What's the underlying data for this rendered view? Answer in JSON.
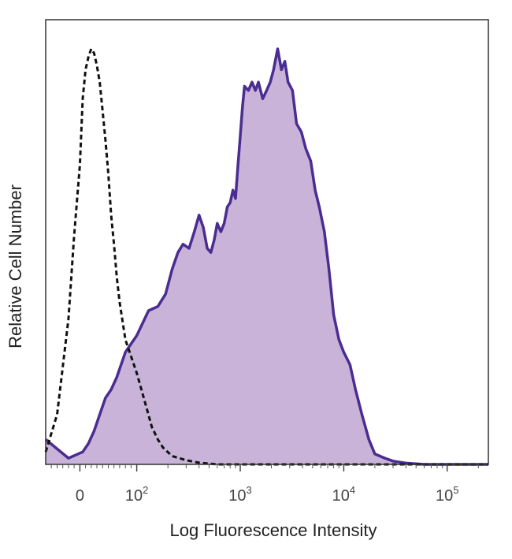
{
  "chart_data": {
    "type": "area",
    "xlabel": "Log Fluorescence Intensity",
    "ylabel": "Relative Cell Number",
    "x_scale": "biexponential",
    "xlim": [
      -60,
      250000
    ],
    "ylim": [
      0,
      100
    ],
    "grid": false,
    "legend": "none",
    "x_ticks": [
      {
        "value": 0,
        "base": "0",
        "exp": ""
      },
      {
        "value": 100,
        "base": "10",
        "exp": "2"
      },
      {
        "value": 1000,
        "base": "10",
        "exp": "3"
      },
      {
        "value": 10000,
        "base": "10",
        "exp": "4"
      },
      {
        "value": 100000,
        "base": "10",
        "exp": "5"
      }
    ],
    "series": [
      {
        "style": "filled-solid",
        "color": "#4a2d91",
        "fill": "#c9b3d8",
        "points": [
          [
            -60,
            6
          ],
          [
            -20,
            1.5
          ],
          [
            5,
            3
          ],
          [
            15,
            5
          ],
          [
            25,
            8
          ],
          [
            35,
            12
          ],
          [
            45,
            16
          ],
          [
            55,
            18
          ],
          [
            65,
            21
          ],
          [
            80,
            27
          ],
          [
            100,
            31
          ],
          [
            130,
            37
          ],
          [
            160,
            38
          ],
          [
            190,
            41
          ],
          [
            220,
            47
          ],
          [
            250,
            51
          ],
          [
            280,
            53
          ],
          [
            320,
            52
          ],
          [
            360,
            56
          ],
          [
            400,
            60
          ],
          [
            440,
            57
          ],
          [
            480,
            52
          ],
          [
            520,
            51
          ],
          [
            560,
            54
          ],
          [
            600,
            58
          ],
          [
            650,
            56
          ],
          [
            700,
            58
          ],
          [
            750,
            62
          ],
          [
            800,
            63
          ],
          [
            850,
            66
          ],
          [
            900,
            64
          ],
          [
            950,
            72
          ],
          [
            1000,
            79
          ],
          [
            1050,
            86
          ],
          [
            1100,
            91
          ],
          [
            1200,
            90
          ],
          [
            1300,
            92
          ],
          [
            1400,
            90
          ],
          [
            1500,
            92
          ],
          [
            1650,
            88
          ],
          [
            1800,
            90
          ],
          [
            1950,
            92
          ],
          [
            2100,
            95
          ],
          [
            2300,
            100
          ],
          [
            2500,
            95
          ],
          [
            2700,
            97
          ],
          [
            2900,
            92
          ],
          [
            3200,
            90
          ],
          [
            3500,
            82
          ],
          [
            3900,
            80
          ],
          [
            4300,
            76
          ],
          [
            4800,
            73
          ],
          [
            5300,
            66
          ],
          [
            5800,
            62
          ],
          [
            6500,
            56
          ],
          [
            7200,
            47
          ],
          [
            8000,
            36
          ],
          [
            9000,
            30
          ],
          [
            10000,
            27
          ],
          [
            11500,
            24
          ],
          [
            13000,
            18
          ],
          [
            15000,
            12
          ],
          [
            17500,
            6
          ],
          [
            20000,
            2.5
          ],
          [
            25000,
            1.5
          ],
          [
            30000,
            0.8
          ],
          [
            40000,
            0.3
          ],
          [
            60000,
            0
          ],
          [
            250000,
            0
          ]
        ]
      },
      {
        "style": "dashed",
        "color": "#111111",
        "points": [
          [
            -60,
            3
          ],
          [
            -40,
            12
          ],
          [
            -20,
            35
          ],
          [
            -10,
            55
          ],
          [
            0,
            72
          ],
          [
            5,
            88
          ],
          [
            10,
            95
          ],
          [
            15,
            98
          ],
          [
            20,
            100
          ],
          [
            25,
            99
          ],
          [
            30,
            96
          ],
          [
            35,
            92
          ],
          [
            40,
            85
          ],
          [
            45,
            78
          ],
          [
            50,
            70
          ],
          [
            55,
            60
          ],
          [
            60,
            53
          ],
          [
            65,
            45
          ],
          [
            70,
            39
          ],
          [
            80,
            30
          ],
          [
            90,
            26
          ],
          [
            100,
            22
          ],
          [
            120,
            15
          ],
          [
            140,
            9
          ],
          [
            160,
            6
          ],
          [
            180,
            4
          ],
          [
            220,
            2
          ],
          [
            300,
            1
          ],
          [
            400,
            0.4
          ],
          [
            600,
            0
          ],
          [
            250000,
            0
          ]
        ]
      }
    ]
  }
}
